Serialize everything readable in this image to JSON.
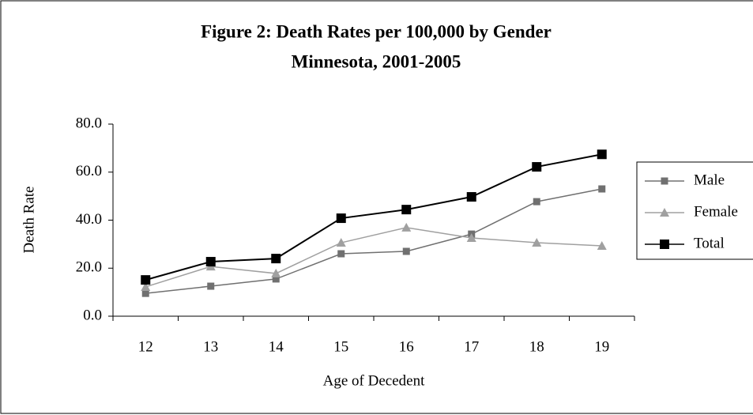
{
  "chart_data": {
    "type": "line",
    "title": "Figure 2: Death Rates per 100,000 by Gender",
    "subtitle": "Minnesota, 2001-2005",
    "x_label": "Age of Decedent",
    "y_label": "Death Rate",
    "categories": [
      "12",
      "13",
      "14",
      "15",
      "16",
      "17",
      "18",
      "19"
    ],
    "series": [
      {
        "name": "Male",
        "color": "#707070",
        "marker": "square",
        "values": [
          9.5,
          12.5,
          15.5,
          26.0,
          27.0,
          34.2,
          47.7,
          53.0
        ]
      },
      {
        "name": "Female",
        "color": "#a0a0a0",
        "marker": "triangle",
        "values": [
          12.2,
          20.7,
          17.8,
          30.6,
          36.9,
          32.6,
          30.6,
          29.3
        ]
      },
      {
        "name": "Total",
        "color": "#000000",
        "marker": "square",
        "values": [
          15.1,
          22.7,
          24.0,
          40.8,
          44.4,
          49.7,
          62.2,
          67.4
        ]
      }
    ],
    "ylim": [
      0,
      80
    ],
    "yticks": [
      {
        "value": 0,
        "label": "0.0"
      },
      {
        "value": 20,
        "label": "20.0"
      },
      {
        "value": 40,
        "label": "40.0"
      },
      {
        "value": 60,
        "label": "60.0"
      },
      {
        "value": 80,
        "label": "80.0"
      }
    ],
    "legend": "right"
  }
}
